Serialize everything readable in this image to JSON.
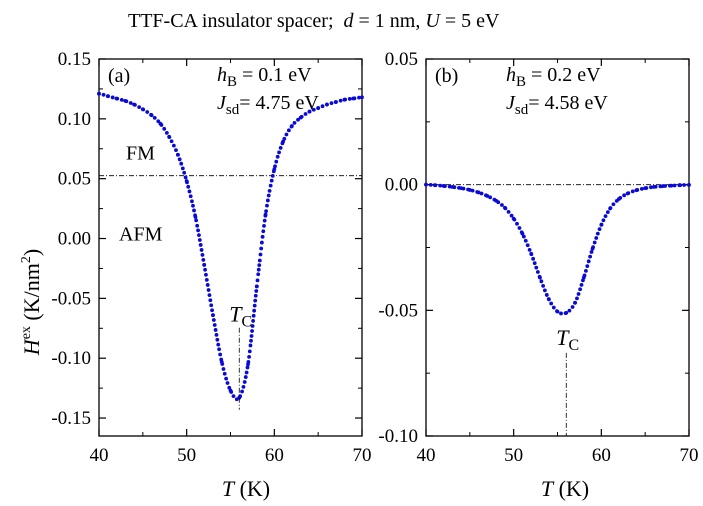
{
  "figure": {
    "title_html": "TTF-CA insulator spacer;",
    "title_d": "d",
    "title_d_val": " = 1 nm, ",
    "title_U": "U",
    "title_U_val": " = 5 eV",
    "ylabel_main": "H",
    "ylabel_sup": "ex",
    "ylabel_units": " (K/nm",
    "ylabel_units_sup": "2",
    "ylabel_close": ")",
    "xlabel_main": "T",
    "xlabel_units": " (K)"
  },
  "chart_data": [
    {
      "type": "scatter",
      "panel_label": "(a)",
      "param1_sym": "h",
      "param1_sub": "B",
      "param1_val": " = 0.1 eV",
      "param2_sym": "J",
      "param2_sub": "sd",
      "param2_val": "= 4.75 eV",
      "region_above": "FM",
      "region_below": "AFM",
      "tc_sym": "T",
      "tc_sub": "C",
      "tc_x": 56,
      "ref_line_y": 0.0525,
      "xlim": [
        40,
        70
      ],
      "ylim": [
        -0.165,
        0.15
      ],
      "xticks": [
        40,
        50,
        60,
        70
      ],
      "xtick_labels": [
        "40",
        "50",
        "60",
        "70"
      ],
      "yticks": [
        -0.15,
        -0.1,
        -0.05,
        0.0,
        0.05,
        0.1,
        0.15
      ],
      "ytick_labels": [
        "-0.15",
        "-0.10",
        "-0.05",
        "0.00",
        "0.05",
        "0.10",
        "0.15"
      ],
      "series": [
        {
          "color": "#0a0ad8",
          "x": [
            40,
            41,
            42,
            43,
            44,
            45,
            46,
            47,
            48,
            49,
            50,
            51,
            52,
            53,
            54,
            55,
            56,
            57,
            58,
            59,
            60,
            61,
            62,
            63,
            64,
            65,
            66,
            67,
            68,
            69,
            70
          ],
          "y": [
            0.121,
            0.119,
            0.117,
            0.115,
            0.112,
            0.108,
            0.103,
            0.096,
            0.085,
            0.07,
            0.048,
            0.018,
            -0.022,
            -0.064,
            -0.103,
            -0.127,
            -0.133,
            -0.105,
            -0.04,
            0.02,
            0.058,
            0.081,
            0.094,
            0.101,
            0.106,
            0.109,
            0.112,
            0.114,
            0.116,
            0.117,
            0.118
          ]
        }
      ]
    },
    {
      "type": "scatter",
      "panel_label": "(b)",
      "param1_sym": "h",
      "param1_sub": "B",
      "param1_val": " = 0.2 eV",
      "param2_sym": "J",
      "param2_sub": "sd",
      "param2_val": "= 4.58 eV",
      "tc_sym": "T",
      "tc_sub": "C",
      "tc_x": 56,
      "ref_line_y": 0.0,
      "xlim": [
        40,
        70
      ],
      "ylim": [
        -0.1,
        0.05
      ],
      "xticks": [
        40,
        50,
        60,
        70
      ],
      "xtick_labels": [
        "40",
        "50",
        "60",
        "70"
      ],
      "yticks": [
        -0.1,
        -0.05,
        0.0,
        0.05
      ],
      "ytick_labels": [
        "-0.10",
        "-0.05",
        "0.00",
        "0.05"
      ],
      "series": [
        {
          "color": "#0a0ad8",
          "x": [
            40,
            41,
            42,
            43,
            44,
            45,
            46,
            47,
            48,
            49,
            50,
            51,
            52,
            53,
            54,
            55,
            56,
            57,
            58,
            59,
            60,
            61,
            62,
            63,
            64,
            65,
            66,
            67,
            68,
            69,
            70
          ],
          "y": [
            0.0,
            -0.0002,
            -0.0005,
            -0.0009,
            -0.0014,
            -0.0021,
            -0.0031,
            -0.0045,
            -0.0064,
            -0.0092,
            -0.0135,
            -0.0195,
            -0.0275,
            -0.037,
            -0.0455,
            -0.0505,
            -0.051,
            -0.047,
            -0.037,
            -0.0255,
            -0.016,
            -0.0095,
            -0.0057,
            -0.0035,
            -0.0022,
            -0.0014,
            -0.0009,
            -0.0006,
            -0.0004,
            -0.0002,
            -0.0001
          ]
        }
      ]
    }
  ]
}
